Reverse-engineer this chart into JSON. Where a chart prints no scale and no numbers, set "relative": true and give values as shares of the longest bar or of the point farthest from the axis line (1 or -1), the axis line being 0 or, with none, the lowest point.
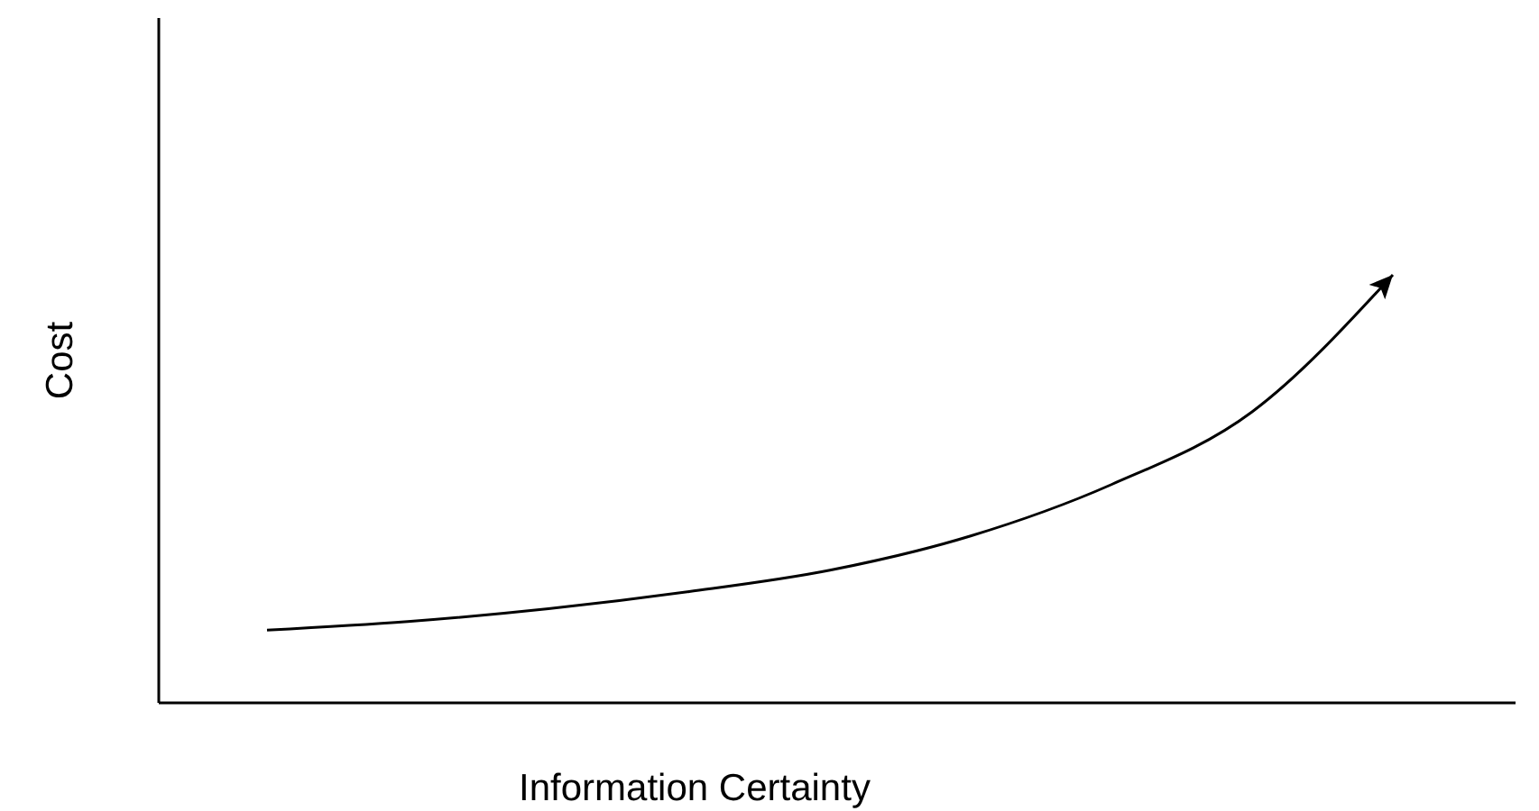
{
  "chart_data": {
    "type": "line",
    "xlabel": "Information Certainty",
    "ylabel": "Cost",
    "relative": true,
    "categories": [
      null,
      null,
      null,
      null,
      null,
      null,
      null,
      null,
      null
    ],
    "series": [
      {
        "color": "#000000",
        "values": [
          0.17,
          0.19,
          0.22,
          0.26,
          0.31,
          0.39,
          0.51,
          0.68,
          1
        ]
      }
    ]
  }
}
